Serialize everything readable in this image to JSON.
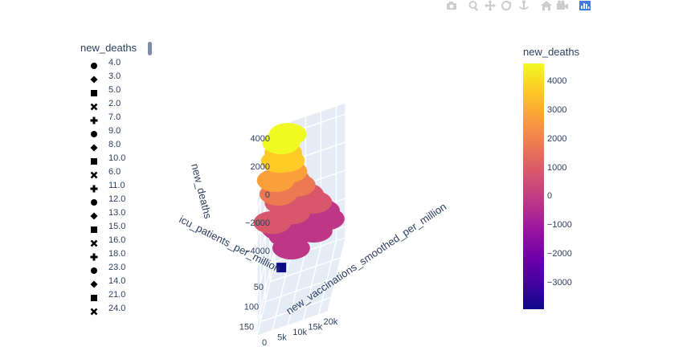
{
  "modebar": {
    "buttons": [
      "camera-icon",
      "zoom-icon",
      "pan-icon",
      "orbit-icon",
      "turntable-icon",
      "home-icon",
      "reset-camera-icon",
      "plotly-logo-icon"
    ]
  },
  "legend": {
    "title": "new_deaths",
    "items": [
      {
        "label": "4.0",
        "symbol": "circle"
      },
      {
        "label": "3.0",
        "symbol": "diamond"
      },
      {
        "label": "5.0",
        "symbol": "square"
      },
      {
        "label": "2.0",
        "symbol": "x"
      },
      {
        "label": "7.0",
        "symbol": "cross"
      },
      {
        "label": "9.0",
        "symbol": "circle"
      },
      {
        "label": "8.0",
        "symbol": "diamond"
      },
      {
        "label": "10.0",
        "symbol": "square"
      },
      {
        "label": "6.0",
        "symbol": "x"
      },
      {
        "label": "11.0",
        "symbol": "cross"
      },
      {
        "label": "12.0",
        "symbol": "circle"
      },
      {
        "label": "13.0",
        "symbol": "diamond"
      },
      {
        "label": "15.0",
        "symbol": "square"
      },
      {
        "label": "16.0",
        "symbol": "x"
      },
      {
        "label": "18.0",
        "symbol": "cross"
      },
      {
        "label": "23.0",
        "symbol": "circle"
      },
      {
        "label": "14.0",
        "symbol": "diamond"
      },
      {
        "label": "21.0",
        "symbol": "square"
      },
      {
        "label": "24.0",
        "symbol": "x"
      }
    ]
  },
  "colorbar": {
    "title": "new_deaths",
    "ticks": [
      {
        "label": "4000",
        "value": 4000
      },
      {
        "label": "3000",
        "value": 3000
      },
      {
        "label": "2000",
        "value": 2000
      },
      {
        "label": "1000",
        "value": 1000
      },
      {
        "label": "0",
        "value": 0
      },
      {
        "label": "−1000",
        "value": -1000
      },
      {
        "label": "−2000",
        "value": -2000
      },
      {
        "label": "−3000",
        "value": -3000
      }
    ],
    "range": [
      -3900,
      4650
    ]
  },
  "chart_data": {
    "type": "scatter3d",
    "colorscale": "plasma",
    "axes": {
      "x": {
        "title": "new_vaccinations_smoothed_per_million",
        "ticks": [
          "0",
          "5k",
          "10k",
          "15k",
          "20k"
        ],
        "tick_values": [
          0,
          5000,
          10000,
          15000,
          20000
        ],
        "range": [
          0,
          23000
        ]
      },
      "y": {
        "title": "icu_patients_per_million",
        "ticks": [
          "50",
          "100",
          "150"
        ],
        "tick_values": [
          50,
          100,
          150
        ],
        "range": [
          0,
          185
        ]
      },
      "z": {
        "title": "new_deaths",
        "ticks": [
          "4000",
          "2000",
          "0",
          "−2000",
          "−4000"
        ],
        "tick_values": [
          4000,
          2000,
          0,
          -2000,
          -4000
        ],
        "range": [
          -4800,
          4800
        ]
      }
    },
    "grid": true,
    "legend_placement": "left",
    "colorbar_placement": "right",
    "points_approx": [
      {
        "x": 5000,
        "y": 25,
        "z": 4600
      },
      {
        "x": 3000,
        "y": 30,
        "z": 4300
      },
      {
        "x": 4000,
        "y": 40,
        "z": 3800
      },
      {
        "x": 5000,
        "y": 45,
        "z": 3300
      },
      {
        "x": 3000,
        "y": 45,
        "z": 3400
      },
      {
        "x": 6000,
        "y": 50,
        "z": 2600
      },
      {
        "x": 7000,
        "y": 55,
        "z": 2100
      },
      {
        "x": 2000,
        "y": 55,
        "z": 2400
      },
      {
        "x": 9000,
        "y": 60,
        "z": 1700
      },
      {
        "x": 3000,
        "y": 60,
        "z": 1500
      },
      {
        "x": 12000,
        "y": 70,
        "z": 1100
      },
      {
        "x": 5000,
        "y": 70,
        "z": 1000
      },
      {
        "x": 15000,
        "y": 80,
        "z": 600
      },
      {
        "x": 8000,
        "y": 85,
        "z": 500
      },
      {
        "x": 2000,
        "y": 90,
        "z": 400
      },
      {
        "x": 18000,
        "y": 95,
        "z": 200
      },
      {
        "x": 11000,
        "y": 100,
        "z": 100
      },
      {
        "x": 5000,
        "y": 100,
        "z": 0
      },
      {
        "x": 20000,
        "y": 110,
        "z": -100
      },
      {
        "x": 14000,
        "y": 120,
        "z": -200
      },
      {
        "x": 8000,
        "y": 125,
        "z": 0
      },
      {
        "x": 17000,
        "y": 140,
        "z": 100
      },
      {
        "x": 10000,
        "y": 150,
        "z": -300
      },
      {
        "x": 4000,
        "y": 60,
        "z": -3800
      }
    ]
  }
}
